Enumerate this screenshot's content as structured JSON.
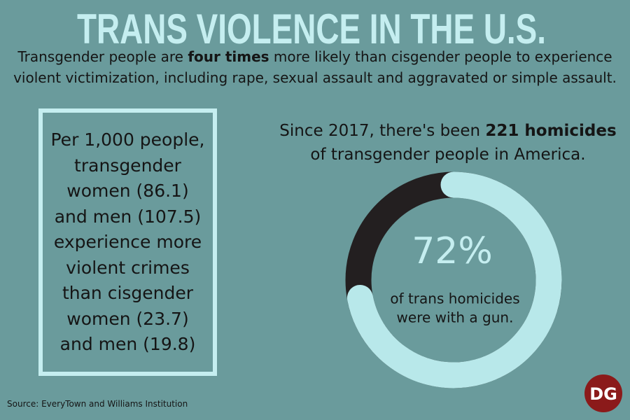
{
  "title": "TRANS VIOLENCE IN THE U.S.",
  "subtitle": [
    "Transgender people are ",
    "four times",
    " more likely than cisgender people to experience violent victimization, including rape, sexual assault and aggravated or simple assault."
  ],
  "box_lines": [
    "Per 1,000 people,",
    "transgender",
    "women (86.1)",
    "and men (107.5)",
    "experience more",
    "violent crimes",
    "than cisgender",
    "women (23.7)",
    "and men (19.8)"
  ],
  "homicides": [
    "Since 2017, there's been ",
    "221 homicides",
    " of transgender people in America."
  ],
  "donut": {
    "value": 72,
    "label": "72%",
    "caption": [
      "of trans homicides",
      "were with a gun."
    ]
  },
  "source": "Source: EveryTown and Williams Institution",
  "logo": "DG"
}
